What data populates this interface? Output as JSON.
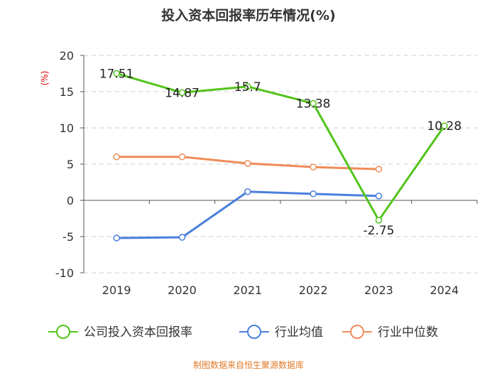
{
  "chart_data": {
    "type": "line",
    "title": "投入资本回报率历年情况(%)",
    "ylabel": "(%)",
    "xlabel": "",
    "categories": [
      "2019",
      "2020",
      "2021",
      "2022",
      "2023",
      "2024"
    ],
    "ylim": [
      -10,
      20
    ],
    "yticks": [
      20,
      15,
      10,
      5,
      0,
      -5,
      -10
    ],
    "grid": true,
    "legend_position": "bottom",
    "series": [
      {
        "name": "公司投入资本回报率",
        "color": "#52c41a",
        "values": [
          17.51,
          14.87,
          15.7,
          13.38,
          -2.75,
          10.28
        ],
        "labels": [
          "17.51",
          "14.87",
          "15.7",
          "13.38",
          "-2.75",
          "10.28"
        ]
      },
      {
        "name": "行业均值",
        "color": "#4a7fdc",
        "values": [
          -5.2,
          -5.1,
          1.2,
          0.9,
          0.6,
          null
        ]
      },
      {
        "name": "行业中位数",
        "color": "#f08c5a",
        "values": [
          6.0,
          6.0,
          5.1,
          4.6,
          4.3,
          null
        ]
      }
    ]
  },
  "source_text": "制图数据来自恒生聚源数据库"
}
